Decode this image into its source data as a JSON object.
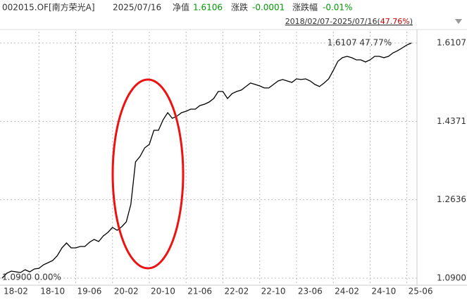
{
  "header": {
    "code": "002015.OF[南方荣光A]",
    "date": "2025/07/16",
    "nav_label": "净值",
    "nav": "1.6106",
    "change_label": "涨跌",
    "change": "-0.0001",
    "pct_label": "涨跌幅",
    "pct": "-0.01%",
    "range": "2018/02/07-2025/07/16(",
    "range_change": "47.76%",
    "range_close": ")"
  },
  "chart_data": {
    "type": "line",
    "categories": [
      "18-02",
      null,
      null,
      null,
      null,
      null,
      null,
      null,
      "18-10",
      null,
      null,
      null,
      null,
      null,
      null,
      null,
      "19-06",
      null,
      null,
      null,
      null,
      null,
      null,
      null,
      "20-02",
      null,
      null,
      null,
      null,
      null,
      null,
      null,
      "20-10",
      null,
      null,
      null,
      null,
      null,
      null,
      null,
      "21-06",
      null,
      null,
      null,
      null,
      null,
      null,
      null,
      "22-02",
      null,
      null,
      null,
      null,
      null,
      null,
      null,
      "22-10",
      null,
      null,
      null,
      null,
      null,
      null,
      null,
      "23-06",
      null,
      null,
      null,
      null,
      null,
      null,
      null,
      "24-02",
      null,
      null,
      null,
      null,
      null,
      null,
      null,
      "24-10",
      null,
      null,
      null,
      null,
      null,
      null,
      null,
      "25-06",
      null
    ],
    "series": [
      {
        "color": "#000000",
        "values": [
          1.09,
          1.1009,
          1.1056,
          1.104,
          1.1025,
          1.1087,
          1.104,
          1.1103,
          1.1118,
          1.1196,
          1.1243,
          1.129,
          1.1399,
          1.157,
          1.168,
          1.157,
          1.157,
          1.1602,
          1.1602,
          1.1695,
          1.1758,
          1.1711,
          1.1835,
          1.1913,
          1.2023,
          1.196,
          1.2038,
          1.2147,
          1.2537,
          1.3473,
          1.3597,
          1.3784,
          1.3862,
          1.4174,
          1.4174,
          1.4408,
          1.4564,
          1.4439,
          1.4486,
          1.4564,
          1.4595,
          1.4642,
          1.4642,
          1.472,
          1.4751,
          1.4798,
          1.4876,
          1.5032,
          1.5032,
          1.4876,
          1.4985,
          1.5032,
          1.5063,
          1.5141,
          1.5219,
          1.5188,
          1.5156,
          1.511,
          1.511,
          1.5188,
          1.5265,
          1.5297,
          1.5265,
          1.5234,
          1.5312,
          1.5297,
          1.5312,
          1.5265,
          1.5188,
          1.5141,
          1.5219,
          1.5312,
          1.5499,
          1.5702,
          1.578,
          1.5811,
          1.578,
          1.5733,
          1.5733,
          1.5686,
          1.5733,
          1.5811,
          1.5811,
          1.578,
          1.5811,
          1.5889,
          1.5936,
          1.5998,
          1.6061,
          1.6106
        ]
      }
    ],
    "ylim": [
      1.0744,
      1.6356
    ],
    "yticks": [
      {
        "value": 1.09,
        "label": "1.0900"
      },
      1.2636,
      1.4371,
      1.6107
    ],
    "grid": true,
    "annotations": [
      "1.6107 47.77%",
      "1.0900 0.00%"
    ]
  }
}
